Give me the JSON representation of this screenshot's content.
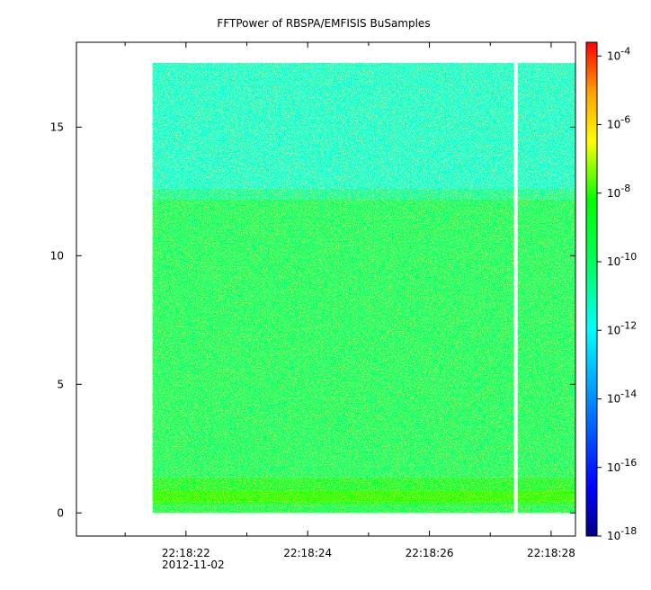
{
  "chart_data": {
    "type": "heatmap",
    "title": "FFTPower of RBSPA/EMFISIS  BuSamples",
    "x_ticks": [
      {
        "label": "22:18:22",
        "sub": "2012-11-02",
        "t": 22
      },
      {
        "label": "22:18:24",
        "t": 24
      },
      {
        "label": "22:18:26",
        "t": 26
      },
      {
        "label": "22:18:28",
        "t": 28
      }
    ],
    "x_minor_ticks": [
      21.0,
      23.0,
      25.0,
      27.0
    ],
    "xlim": [
      20.2,
      28.4
    ],
    "ylim": [
      -0.9,
      18.3
    ],
    "y_ticks": [
      0,
      5,
      10,
      15
    ],
    "data_extent": {
      "t_start": 21.45,
      "t_end": 28.4,
      "freq_min": 0.0,
      "freq_max": 17.5,
      "gap_t": 27.42
    },
    "bands": [
      {
        "freq_from": 0.0,
        "freq_to": 0.3,
        "log_power": -10.0
      },
      {
        "freq_from": 0.3,
        "freq_to": 0.45,
        "log_power": -9.3
      },
      {
        "freq_from": 0.45,
        "freq_to": 0.85,
        "log_power": -8.0
      },
      {
        "freq_from": 0.85,
        "freq_to": 1.4,
        "log_power": -9.3
      },
      {
        "freq_from": 1.4,
        "freq_to": 12.2,
        "log_power": -10.2
      },
      {
        "freq_from": 12.2,
        "freq_to": 12.6,
        "log_power": -10.8
      },
      {
        "freq_from": 12.6,
        "freq_to": 17.5,
        "log_power": -11.4
      }
    ],
    "colorbar": {
      "scale": "log",
      "range_exp": [
        -18,
        -3.6
      ],
      "tick_exponents": [
        -18,
        -16,
        -14,
        -12,
        -10,
        -8,
        -6,
        -4
      ],
      "tick_base": "10",
      "colors": [
        "#000080",
        "#0000ff",
        "#00a0ff",
        "#00ffff",
        "#00ff00",
        "#ffff00",
        "#ffa000",
        "#ff0000"
      ]
    }
  }
}
